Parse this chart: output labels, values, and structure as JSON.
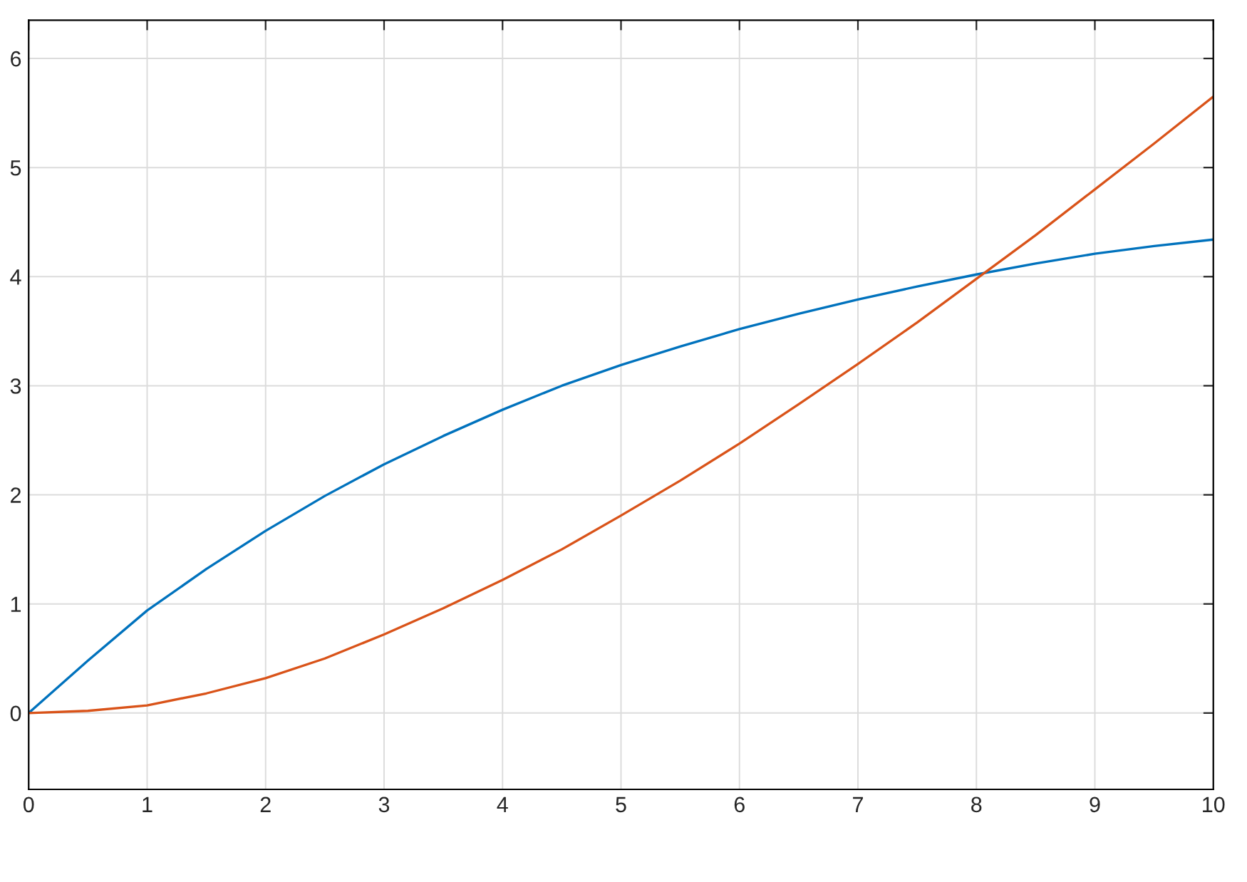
{
  "chart_data": {
    "type": "line",
    "x": [
      0,
      0.5,
      1,
      1.5,
      2,
      2.5,
      3,
      3.5,
      4,
      4.5,
      5,
      5.5,
      6,
      6.5,
      7,
      7.5,
      8,
      8.5,
      9,
      9.5,
      10
    ],
    "series": [
      {
        "color": "#0072bd",
        "values": [
          0,
          0.48,
          0.94,
          1.32,
          1.67,
          1.99,
          2.28,
          2.54,
          2.78,
          3.0,
          3.19,
          3.36,
          3.52,
          3.66,
          3.79,
          3.91,
          4.02,
          4.12,
          4.21,
          4.28,
          4.34
        ]
      },
      {
        "color": "#d95319",
        "values": [
          0,
          0.02,
          0.07,
          0.18,
          0.32,
          0.5,
          0.72,
          0.96,
          1.22,
          1.5,
          1.81,
          2.13,
          2.47,
          2.83,
          3.2,
          3.58,
          3.98,
          4.38,
          4.8,
          5.22,
          5.65
        ]
      }
    ],
    "xlim": [
      0,
      10
    ],
    "xticks": [
      0,
      1,
      2,
      3,
      4,
      5,
      6,
      7,
      8,
      9,
      10
    ],
    "ylim": [
      -0.7,
      6.35
    ],
    "yticks": [
      0,
      1,
      2,
      3,
      4,
      5,
      6
    ],
    "grid": true,
    "marker": "none",
    "line_style": "solid"
  }
}
